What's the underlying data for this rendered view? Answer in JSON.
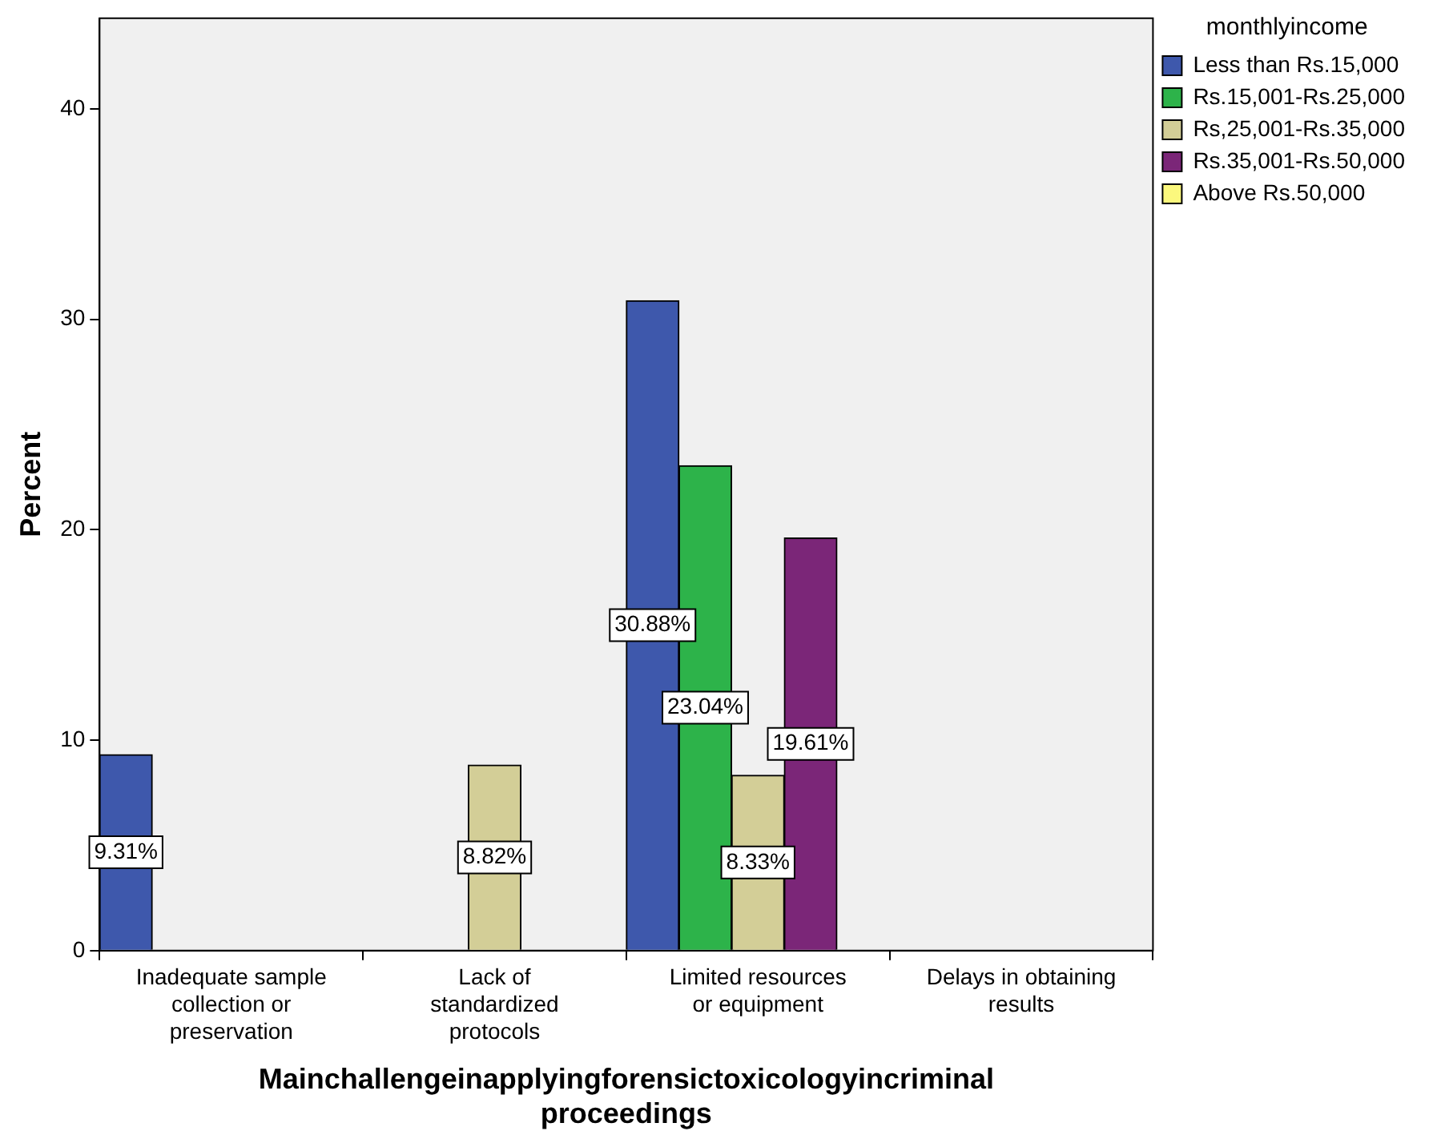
{
  "chart_data": {
    "type": "bar",
    "xlabel": "Mainchallengeinapplyingforensictoxicologyincriminal proceedings",
    "ylabel": "Percent",
    "legend_title": "monthlyincome",
    "categories": [
      "Inadequate sample collection or preservation",
      "Lack of standardized protocols",
      "Limited resources or equipment",
      "Delays in obtaining results"
    ],
    "series": [
      {
        "name": "Less than Rs.15,000",
        "color": "#3e58ac",
        "values": [
          9.31,
          null,
          30.88,
          null
        ],
        "value_labels": [
          "9.31%",
          null,
          "30.88%",
          null
        ]
      },
      {
        "name": "Rs.15,001-Rs.25,000",
        "color": "#2db34a",
        "values": [
          null,
          null,
          23.04,
          null
        ],
        "value_labels": [
          null,
          null,
          "23.04%",
          null
        ]
      },
      {
        "name": "Rs,25,001-Rs.35,000",
        "color": "#d3ce97",
        "values": [
          null,
          8.82,
          8.33,
          null
        ],
        "value_labels": [
          null,
          "8.82%",
          "8.33%",
          null
        ]
      },
      {
        "name": "Rs.35,001-Rs.50,000",
        "color": "#7b2678",
        "values": [
          null,
          null,
          19.61,
          null
        ],
        "value_labels": [
          null,
          null,
          "19.61%",
          null
        ]
      },
      {
        "name": "Above Rs.50,000",
        "color": "#fbf87d",
        "values": [
          null,
          null,
          null,
          null
        ]
      }
    ],
    "ylim": [
      0,
      44.3
    ],
    "yticks": [
      0,
      10,
      20,
      30,
      40
    ],
    "grid": false,
    "legend": "top right"
  }
}
